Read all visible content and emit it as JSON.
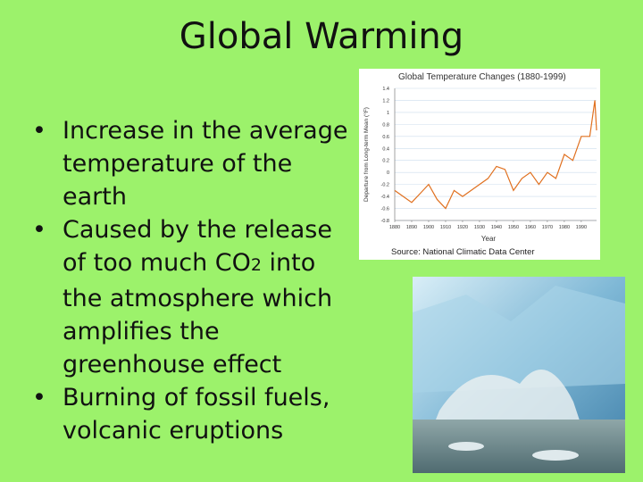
{
  "slide": {
    "title": "Global Warming",
    "bullets": [
      "Increase in the average temperature of the earth",
      [
        "Caused by the release of too much CO",
        "2",
        " into the atmosphere which amplifies the greenhouse effect"
      ],
      "Burning of fossil fuels, volcanic eruptions"
    ]
  },
  "chart_data": {
    "type": "line",
    "title": "Global Temperature Changes (1880-1999)",
    "y_label": "Departure from Long-term Mean (°F)",
    "x_label": "Year",
    "source": "Source: National Climatic Data Center",
    "x": [
      1880,
      1885,
      1890,
      1895,
      1900,
      1905,
      1910,
      1915,
      1920,
      1925,
      1930,
      1935,
      1940,
      1945,
      1950,
      1955,
      1960,
      1965,
      1970,
      1975,
      1980,
      1985,
      1990,
      1995,
      1998,
      1999
    ],
    "series": [
      {
        "color": "#e0701f",
        "values": [
          -0.3,
          -0.4,
          -0.5,
          -0.35,
          -0.2,
          -0.45,
          -0.6,
          -0.3,
          -0.4,
          -0.3,
          -0.2,
          -0.1,
          0.1,
          0.05,
          -0.3,
          -0.1,
          0.0,
          -0.2,
          0.0,
          -0.1,
          0.3,
          0.2,
          0.6,
          0.6,
          1.2,
          0.7
        ]
      }
    ],
    "xlim": [
      1880,
      1999
    ],
    "xticks": [
      1880,
      1890,
      1900,
      1910,
      1920,
      1930,
      1940,
      1950,
      1960,
      1970,
      1980,
      1990
    ],
    "ylim": [
      -0.8,
      1.4
    ],
    "yticks": [
      1.4,
      1.2,
      1,
      0.8,
      0.6,
      0.4,
      0.2,
      0,
      -0.2,
      -0.4,
      -0.6,
      -0.8
    ],
    "grid": true
  }
}
